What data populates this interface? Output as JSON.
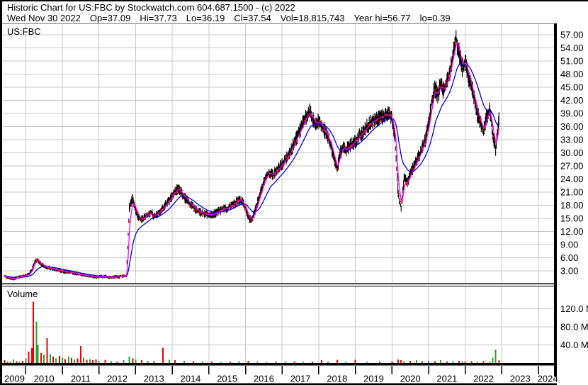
{
  "header": {
    "title": "Historic Chart for US:FBC by Stockwatch.com 604.687.1500 - (c) 2022",
    "quote": {
      "date": "Wed Nov 30 2022",
      "open": "Op=37.09",
      "high": "Hi=37.73",
      "low": "Lo=36.19",
      "close": "Cl=37.54",
      "volume": "Vol=18,815,743",
      "year_high": "Year hi=56.77",
      "year_low": "lo=0.39"
    }
  },
  "price_pane": {
    "symbol_label": "US:FBC"
  },
  "volume_pane": {
    "label": "Volume"
  },
  "chart_data": {
    "type": "line",
    "title": "Historic Chart for US:FBC",
    "symbol": "US:FBC",
    "grid": true,
    "grid_color": "#c8c8c8",
    "x_axis": {
      "labels": [
        "2009",
        "2010",
        "2011",
        "2012",
        "2013",
        "2014",
        "2015",
        "2016",
        "2017",
        "2018",
        "2019",
        "2020",
        "2021",
        "2022",
        "2023",
        "2024"
      ],
      "range": [
        2009.4,
        2024.5
      ]
    },
    "price_axis": {
      "labels": [
        "57.00",
        "54.00",
        "51.00",
        "48.00",
        "45.00",
        "42.00",
        "39.00",
        "36.00",
        "33.00",
        "30.00",
        "27.00",
        "24.00",
        "21.00",
        "18.00",
        "15.00",
        "12.00",
        "9.00",
        "6.00",
        "3.00"
      ],
      "min": 0,
      "max": 59.5,
      "tick_step": 3
    },
    "volume_axis": {
      "labels": [
        "120.0 M",
        "80.0 M",
        "40.0 M"
      ],
      "tick_values_millions": [
        120,
        80,
        40
      ]
    },
    "series": [
      {
        "name": "daily-price-bars",
        "style": "ohlc-band",
        "color": "#000000",
        "tick_color": "#ff0000",
        "points": [
          [
            2009.42,
            1.8
          ],
          [
            2009.5,
            1.5
          ],
          [
            2009.58,
            1.3
          ],
          [
            2009.67,
            1.2
          ],
          [
            2009.75,
            1.4
          ],
          [
            2009.83,
            1.6
          ],
          [
            2009.92,
            1.8
          ],
          [
            2010.0,
            1.9
          ],
          [
            2010.08,
            2.2
          ],
          [
            2010.17,
            3.2
          ],
          [
            2010.25,
            5.2
          ],
          [
            2010.33,
            5.5
          ],
          [
            2010.42,
            4.5
          ],
          [
            2010.5,
            4.1
          ],
          [
            2010.58,
            3.8
          ],
          [
            2010.67,
            3.6
          ],
          [
            2010.75,
            3.5
          ],
          [
            2010.83,
            3.3
          ],
          [
            2010.92,
            3.1
          ],
          [
            2011.0,
            2.9
          ],
          [
            2011.08,
            2.8
          ],
          [
            2011.17,
            2.7
          ],
          [
            2011.25,
            2.6
          ],
          [
            2011.33,
            2.4
          ],
          [
            2011.42,
            2.2
          ],
          [
            2011.5,
            2.1
          ],
          [
            2011.58,
            2.0
          ],
          [
            2011.67,
            1.9
          ],
          [
            2011.75,
            1.8
          ],
          [
            2011.83,
            1.7
          ],
          [
            2011.92,
            1.6
          ],
          [
            2012.0,
            1.6
          ],
          [
            2012.08,
            1.7
          ],
          [
            2012.17,
            1.7
          ],
          [
            2012.25,
            1.6
          ],
          [
            2012.33,
            1.5
          ],
          [
            2012.42,
            1.6
          ],
          [
            2012.5,
            1.6
          ],
          [
            2012.58,
            1.7
          ],
          [
            2012.67,
            1.8
          ],
          [
            2012.75,
            2.0
          ],
          [
            2012.83,
            17.5
          ],
          [
            2012.92,
            19.5
          ],
          [
            2013.0,
            17.0
          ],
          [
            2013.08,
            15.2
          ],
          [
            2013.17,
            14.7
          ],
          [
            2013.25,
            15.3
          ],
          [
            2013.33,
            15.9
          ],
          [
            2013.42,
            16.4
          ],
          [
            2013.5,
            15.4
          ],
          [
            2013.58,
            15.9
          ],
          [
            2013.67,
            16.7
          ],
          [
            2013.75,
            17.4
          ],
          [
            2013.83,
            18.2
          ],
          [
            2013.92,
            19.1
          ],
          [
            2014.0,
            20.3
          ],
          [
            2014.08,
            21.2
          ],
          [
            2014.17,
            21.9
          ],
          [
            2014.25,
            20.9
          ],
          [
            2014.33,
            19.8
          ],
          [
            2014.42,
            19.0
          ],
          [
            2014.5,
            18.2
          ],
          [
            2014.58,
            17.5
          ],
          [
            2014.67,
            16.9
          ],
          [
            2014.75,
            16.5
          ],
          [
            2014.83,
            16.2
          ],
          [
            2014.92,
            16.0
          ],
          [
            2015.0,
            15.8
          ],
          [
            2015.08,
            15.9
          ],
          [
            2015.17,
            16.1
          ],
          [
            2015.25,
            16.5
          ],
          [
            2015.33,
            16.9
          ],
          [
            2015.42,
            17.3
          ],
          [
            2015.5,
            17.1
          ],
          [
            2015.58,
            17.7
          ],
          [
            2015.67,
            18.2
          ],
          [
            2015.75,
            18.8
          ],
          [
            2015.83,
            19.3
          ],
          [
            2015.92,
            18.7
          ],
          [
            2016.0,
            17.4
          ],
          [
            2016.08,
            15.1
          ],
          [
            2016.17,
            14.6
          ],
          [
            2016.25,
            16.4
          ],
          [
            2016.33,
            18.7
          ],
          [
            2016.42,
            21.1
          ],
          [
            2016.5,
            23.4
          ],
          [
            2016.58,
            24.9
          ],
          [
            2016.67,
            25.5
          ],
          [
            2016.75,
            24.7
          ],
          [
            2016.83,
            25.9
          ],
          [
            2016.92,
            26.5
          ],
          [
            2017.0,
            27.3
          ],
          [
            2017.08,
            28.5
          ],
          [
            2017.17,
            29.4
          ],
          [
            2017.25,
            30.7
          ],
          [
            2017.33,
            32.2
          ],
          [
            2017.42,
            33.9
          ],
          [
            2017.5,
            35.3
          ],
          [
            2017.58,
            36.9
          ],
          [
            2017.67,
            38.5
          ],
          [
            2017.75,
            39.4
          ],
          [
            2017.83,
            37.8
          ],
          [
            2017.92,
            36.5
          ],
          [
            2018.0,
            37.2
          ],
          [
            2018.08,
            36.1
          ],
          [
            2018.17,
            34.9
          ],
          [
            2018.25,
            33.5
          ],
          [
            2018.33,
            31.7
          ],
          [
            2018.42,
            28.8
          ],
          [
            2018.5,
            26.1
          ],
          [
            2018.58,
            29.7
          ],
          [
            2018.67,
            31.5
          ],
          [
            2018.75,
            30.7
          ],
          [
            2018.83,
            31.3
          ],
          [
            2018.92,
            32.1
          ],
          [
            2019.0,
            32.7
          ],
          [
            2019.08,
            33.5
          ],
          [
            2019.17,
            34.3
          ],
          [
            2019.25,
            35.2
          ],
          [
            2019.33,
            36.1
          ],
          [
            2019.42,
            36.9
          ],
          [
            2019.5,
            37.3
          ],
          [
            2019.58,
            37.7
          ],
          [
            2019.67,
            38.1
          ],
          [
            2019.75,
            38.4
          ],
          [
            2019.83,
            38.6
          ],
          [
            2019.92,
            38.8
          ],
          [
            2020.0,
            37.8
          ],
          [
            2020.08,
            33.4
          ],
          [
            2020.17,
            20.5
          ],
          [
            2020.25,
            17.2
          ],
          [
            2020.33,
            24.0
          ],
          [
            2020.42,
            23.3
          ],
          [
            2020.5,
            25.1
          ],
          [
            2020.58,
            26.6
          ],
          [
            2020.67,
            28.2
          ],
          [
            2020.75,
            29.5
          ],
          [
            2020.83,
            31.3
          ],
          [
            2020.92,
            33.2
          ],
          [
            2021.0,
            36.6
          ],
          [
            2021.08,
            41.2
          ],
          [
            2021.17,
            44.9
          ],
          [
            2021.25,
            43.1
          ],
          [
            2021.33,
            45.7
          ],
          [
            2021.42,
            44.2
          ],
          [
            2021.5,
            46.3
          ],
          [
            2021.58,
            48.8
          ],
          [
            2021.67,
            52.5
          ],
          [
            2021.75,
            56.4
          ],
          [
            2021.83,
            53.0
          ],
          [
            2021.92,
            49.5
          ],
          [
            2022.0,
            50.9
          ],
          [
            2022.08,
            47.8
          ],
          [
            2022.17,
            45.1
          ],
          [
            2022.25,
            42.2
          ],
          [
            2022.33,
            39.0
          ],
          [
            2022.42,
            36.8
          ],
          [
            2022.5,
            34.8
          ],
          [
            2022.58,
            38.1
          ],
          [
            2022.67,
            40.0
          ],
          [
            2022.75,
            34.5
          ],
          [
            2022.83,
            31.0
          ],
          [
            2022.92,
            37.54
          ]
        ]
      },
      {
        "name": "ma-fast",
        "style": "line",
        "color": "#ff00ff",
        "derived_from": "daily-price-bars",
        "smoothing": "ema-fast"
      },
      {
        "name": "ma-slow",
        "style": "line",
        "color": "#0000ee",
        "derived_from": "daily-price-bars",
        "smoothing": "ema-slow"
      }
    ],
    "volume_series": {
      "name": "volume",
      "unit": "millions",
      "colors": {
        "up": "#2da02d",
        "down": "#ee0000"
      },
      "points": [
        [
          2009.42,
          6,
          "r"
        ],
        [
          2009.5,
          3,
          "g"
        ],
        [
          2009.58,
          2,
          "r"
        ],
        [
          2009.67,
          8,
          "g"
        ],
        [
          2009.75,
          4,
          "r"
        ],
        [
          2009.83,
          3,
          "g"
        ],
        [
          2009.92,
          5,
          "r"
        ],
        [
          2010.0,
          10,
          "g"
        ],
        [
          2010.08,
          25,
          "r"
        ],
        [
          2010.17,
          33,
          "r"
        ],
        [
          2010.21,
          136,
          "r"
        ],
        [
          2010.29,
          92,
          "g"
        ],
        [
          2010.33,
          40,
          "g"
        ],
        [
          2010.42,
          22,
          "r"
        ],
        [
          2010.5,
          18,
          "g"
        ],
        [
          2010.58,
          55,
          "r"
        ],
        [
          2010.67,
          20,
          "g"
        ],
        [
          2010.75,
          14,
          "r"
        ],
        [
          2010.83,
          10,
          "g"
        ],
        [
          2010.92,
          16,
          "r"
        ],
        [
          2011.0,
          12,
          "g"
        ],
        [
          2011.08,
          9,
          "r"
        ],
        [
          2011.17,
          14,
          "g"
        ],
        [
          2011.25,
          11,
          "r"
        ],
        [
          2011.33,
          8,
          "g"
        ],
        [
          2011.42,
          10,
          "r"
        ],
        [
          2011.5,
          38,
          "r"
        ],
        [
          2011.58,
          12,
          "g"
        ],
        [
          2011.67,
          7,
          "r"
        ],
        [
          2011.75,
          9,
          "g"
        ],
        [
          2011.83,
          6,
          "r"
        ],
        [
          2011.92,
          8,
          "r"
        ],
        [
          2012.0,
          5,
          "g"
        ],
        [
          2012.17,
          7,
          "r"
        ],
        [
          2012.33,
          4,
          "g"
        ],
        [
          2012.5,
          3,
          "r"
        ],
        [
          2012.67,
          6,
          "g"
        ],
        [
          2012.83,
          14,
          "g"
        ],
        [
          2012.92,
          10,
          "r"
        ],
        [
          2013.0,
          8,
          "g"
        ],
        [
          2013.17,
          6,
          "r"
        ],
        [
          2013.33,
          5,
          "g"
        ],
        [
          2013.5,
          4,
          "r"
        ],
        [
          2013.75,
          34,
          "r"
        ],
        [
          2013.92,
          7,
          "g"
        ],
        [
          2014.08,
          6,
          "r"
        ],
        [
          2014.33,
          5,
          "g"
        ],
        [
          2014.58,
          4,
          "r"
        ],
        [
          2014.83,
          3,
          "g"
        ],
        [
          2015.08,
          3,
          "r"
        ],
        [
          2015.33,
          2,
          "g"
        ],
        [
          2015.58,
          3,
          "r"
        ],
        [
          2015.83,
          4,
          "g"
        ],
        [
          2016.08,
          5,
          "r"
        ],
        [
          2016.33,
          3,
          "g"
        ],
        [
          2016.58,
          2,
          "g"
        ],
        [
          2016.83,
          3,
          "r"
        ],
        [
          2017.08,
          2,
          "g"
        ],
        [
          2017.33,
          3,
          "r"
        ],
        [
          2017.58,
          2,
          "g"
        ],
        [
          2017.83,
          3,
          "r"
        ],
        [
          2018.08,
          6,
          "r"
        ],
        [
          2018.25,
          3,
          "g"
        ],
        [
          2018.5,
          7,
          "r"
        ],
        [
          2018.75,
          3,
          "g"
        ],
        [
          2019.0,
          7,
          "r"
        ],
        [
          2019.33,
          2,
          "g"
        ],
        [
          2019.67,
          3,
          "r"
        ],
        [
          2020.0,
          4,
          "r"
        ],
        [
          2020.17,
          8,
          "r"
        ],
        [
          2020.25,
          6,
          "r"
        ],
        [
          2020.33,
          4,
          "g"
        ],
        [
          2020.5,
          5,
          "r"
        ],
        [
          2020.67,
          6,
          "g"
        ],
        [
          2020.83,
          4,
          "r"
        ],
        [
          2021.0,
          5,
          "g"
        ],
        [
          2021.17,
          4,
          "r"
        ],
        [
          2021.33,
          6,
          "g"
        ],
        [
          2021.5,
          3,
          "r"
        ],
        [
          2021.67,
          4,
          "g"
        ],
        [
          2021.83,
          5,
          "r"
        ],
        [
          2021.92,
          4,
          "g"
        ],
        [
          2022.0,
          3,
          "r"
        ],
        [
          2022.17,
          4,
          "r"
        ],
        [
          2022.33,
          3,
          "g"
        ],
        [
          2022.5,
          4,
          "r"
        ],
        [
          2022.67,
          3,
          "g"
        ],
        [
          2022.75,
          12,
          "g"
        ],
        [
          2022.83,
          30,
          "g"
        ],
        [
          2022.92,
          6,
          "r"
        ]
      ]
    }
  }
}
